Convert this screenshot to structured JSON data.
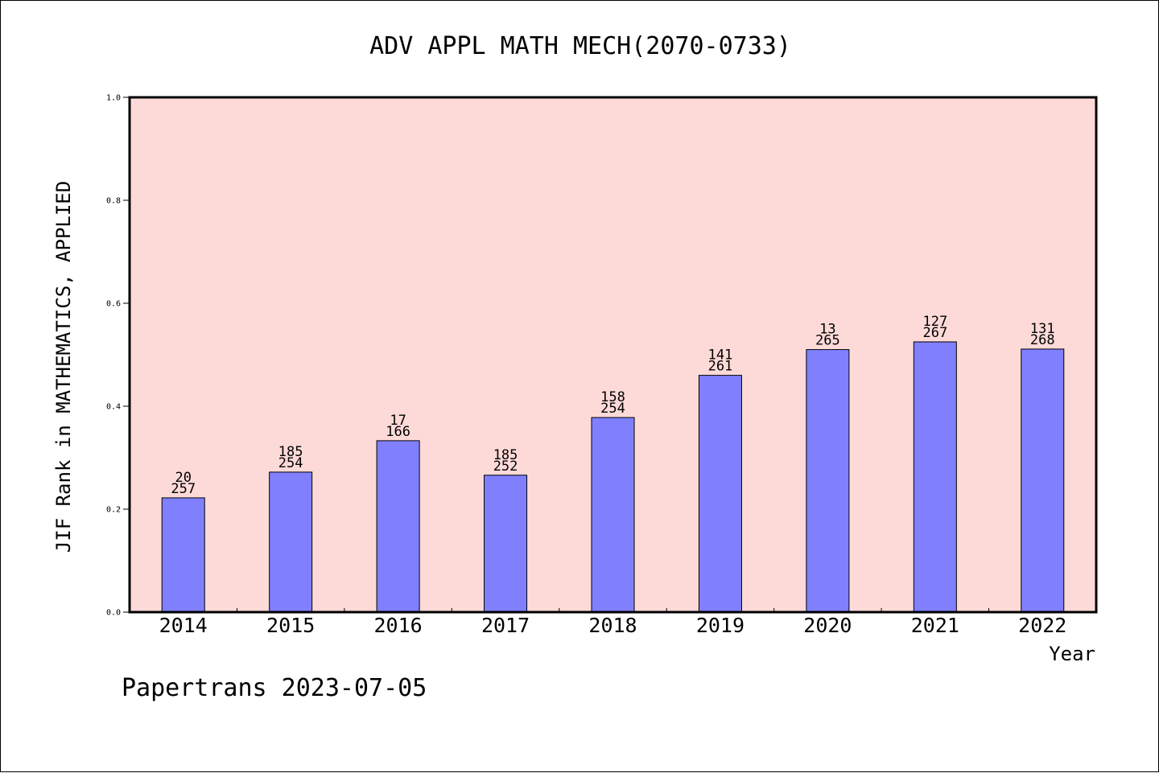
{
  "chart_data": {
    "type": "bar",
    "title": "ADV APPL MATH MECH(2070-0733)",
    "xlabel": "Year",
    "ylabel": "JIF Rank in MATHEMATICS, APPLIED",
    "ylim": [
      0.0,
      1.0
    ],
    "yticks": [
      "0.0",
      "0.2",
      "0.4",
      "0.6",
      "0.8",
      "1.0"
    ],
    "grid": false,
    "categories": [
      "2014",
      "2015",
      "2016",
      "2017",
      "2018",
      "2019",
      "2020",
      "2021",
      "2022"
    ],
    "values": [
      0.222,
      0.272,
      0.333,
      0.266,
      0.378,
      0.46,
      0.51,
      0.525,
      0.511
    ],
    "labels_top": [
      "20",
      "185",
      "17",
      "185",
      "158",
      "141",
      "13",
      "127",
      "131"
    ],
    "labels_bottom": [
      "257",
      "254",
      "166",
      "252",
      "254",
      "261",
      "265",
      "267",
      "268"
    ],
    "colors": {
      "plot_background": "#fddad8",
      "bar_fill": "#8080ff",
      "axis": "#000000"
    }
  },
  "footer": {
    "credit": "Papertrans 2023-07-05"
  }
}
